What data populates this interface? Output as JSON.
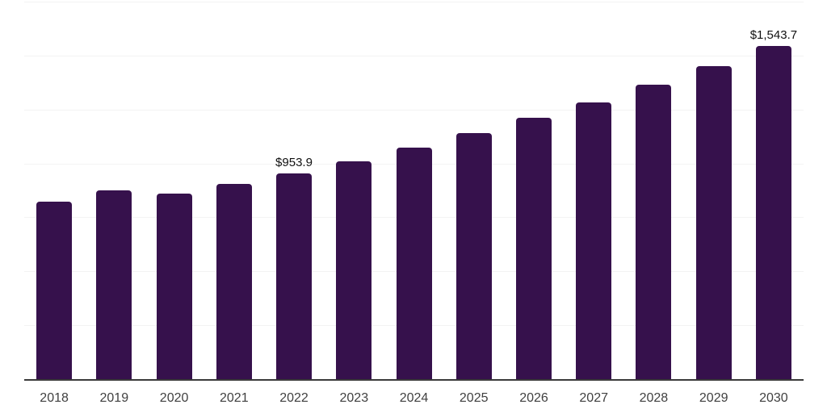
{
  "figure": {
    "background": "#ffffff"
  },
  "chart_data": {
    "type": "bar",
    "title": "",
    "xlabel": "",
    "ylabel": "",
    "categories": [
      "2018",
      "2019",
      "2020",
      "2021",
      "2022",
      "2023",
      "2024",
      "2025",
      "2026",
      "2027",
      "2028",
      "2029",
      "2030"
    ],
    "values": [
      824,
      874,
      859,
      906,
      953.9,
      1010,
      1072,
      1139,
      1210,
      1282,
      1364,
      1450,
      1543.7
    ],
    "data_labels": {
      "2022": "$953.9",
      "2030": "$1,543.7"
    },
    "ylim": [
      0,
      1750
    ],
    "gridline_interval": 250,
    "grid": "horizontal",
    "legend": "none",
    "colors": {
      "bar": "#36114c",
      "gridline": "#f3f3f3",
      "axis_line": "#3a3a3a",
      "tick_label": "#404040",
      "data_label": "#111111"
    }
  }
}
